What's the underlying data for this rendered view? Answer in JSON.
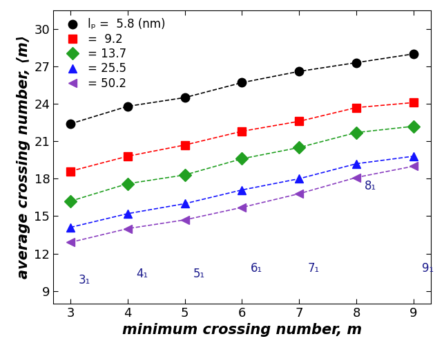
{
  "chart_data": {
    "type": "line",
    "x_label": "minimum crossing number, m",
    "y_label": "average crossing number, ⟨m⟩",
    "x": [
      3,
      4,
      5,
      6,
      7,
      8,
      9
    ],
    "series": [
      {
        "name": "lₚ =  5.8 (nm)",
        "color": "#000000",
        "marker": "circle",
        "line_style": "dashed",
        "values": [
          22.4,
          23.8,
          24.5,
          25.7,
          26.6,
          27.3,
          28.0
        ]
      },
      {
        "name": "=  9.2",
        "color": "#ff0000",
        "marker": "square",
        "line_style": "dashed",
        "values": [
          18.6,
          19.8,
          20.7,
          21.8,
          22.6,
          23.7,
          24.1
        ]
      },
      {
        "name": "= 13.7",
        "color": "#22a022",
        "marker": "diamond",
        "line_style": "dashed",
        "values": [
          16.2,
          17.6,
          18.3,
          19.6,
          20.5,
          21.7,
          22.2
        ]
      },
      {
        "name": "= 25.5",
        "color": "#1414ff",
        "marker": "triangle_up",
        "line_style": "dashed",
        "values": [
          14.1,
          15.2,
          16.0,
          17.1,
          18.0,
          19.2,
          19.8
        ]
      },
      {
        "name": "= 50.2",
        "color": "#8a3fc0",
        "marker": "triangle_left",
        "line_style": "dashed",
        "values": [
          12.9,
          14.0,
          14.7,
          15.7,
          16.8,
          18.1,
          19.0
        ]
      }
    ],
    "knot_labels": [
      "3₁",
      "4₁",
      "5₁",
      "6₁",
      "7₁",
      "8₁",
      "9₁"
    ],
    "xlim": [
      2.7,
      9.3
    ],
    "xticks": [
      3,
      4,
      5,
      6,
      7,
      8,
      9
    ],
    "ylim": [
      8,
      31.5
    ],
    "yticks": [
      9,
      12,
      15,
      18,
      21,
      24,
      27,
      30
    ],
    "legend": "upper left",
    "grid": false
  }
}
